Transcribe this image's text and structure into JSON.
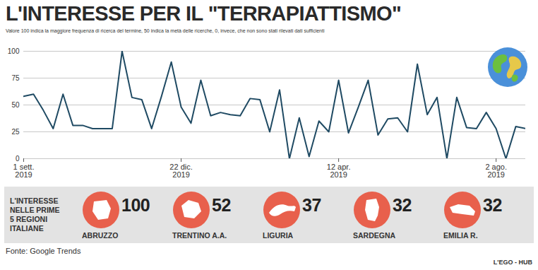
{
  "chart_data": [
    {
      "type": "line",
      "title": "L'INTERESSE PER IL \"TERRAPIATTISMO\"",
      "subtitle": "Valore 100 indica la maggiore frequenza di ricerca del termine, 50 indica la metà delle ricerche, 0, invece, che non sono stati rilevati dati sufficienti",
      "categories": [
        "1 sett.\n2019",
        null,
        null,
        null,
        null,
        null,
        null,
        null,
        null,
        null,
        null,
        null,
        null,
        null,
        null,
        null,
        "22 dic.\n2019",
        null,
        null,
        null,
        null,
        null,
        null,
        null,
        null,
        null,
        null,
        null,
        null,
        null,
        null,
        null,
        "12 apr.\n2019",
        null,
        null,
        null,
        null,
        null,
        null,
        null,
        null,
        null,
        null,
        null,
        null,
        null,
        null,
        null,
        "2 ago.\n2019",
        null,
        null,
        null
      ],
      "values": [
        58,
        60,
        45,
        28,
        60,
        31,
        31,
        28,
        28,
        28,
        100,
        57,
        55,
        28,
        58,
        90,
        48,
        33,
        73,
        40,
        43,
        41,
        40,
        56,
        55,
        25,
        64,
        0,
        38,
        2,
        35,
        25,
        73,
        24,
        48,
        73,
        22,
        37,
        38,
        25,
        88,
        41,
        57,
        0,
        57,
        29,
        28,
        43,
        28,
        0,
        30,
        28
      ],
      "color": "#1f4a63",
      "ylim": [
        0,
        100
      ],
      "yticks": [
        0,
        25,
        50,
        75,
        100
      ],
      "grid": true
    },
    {
      "type": "pictogram",
      "title": "L'INTERESSE\nNELLE PRIME\n5 REGIONI\nITALIANE",
      "categories": [
        "ABRUZZO",
        "TRENTINO A.A.",
        "LIGURIA",
        "SARDEGNA",
        "EMILIA R."
      ],
      "values": [
        100,
        52,
        37,
        32,
        32
      ],
      "color": "#e8604c",
      "data_labels": true
    }
  ],
  "source": "Fonte: Google Trends",
  "credit": "L'EGO - HUB"
}
